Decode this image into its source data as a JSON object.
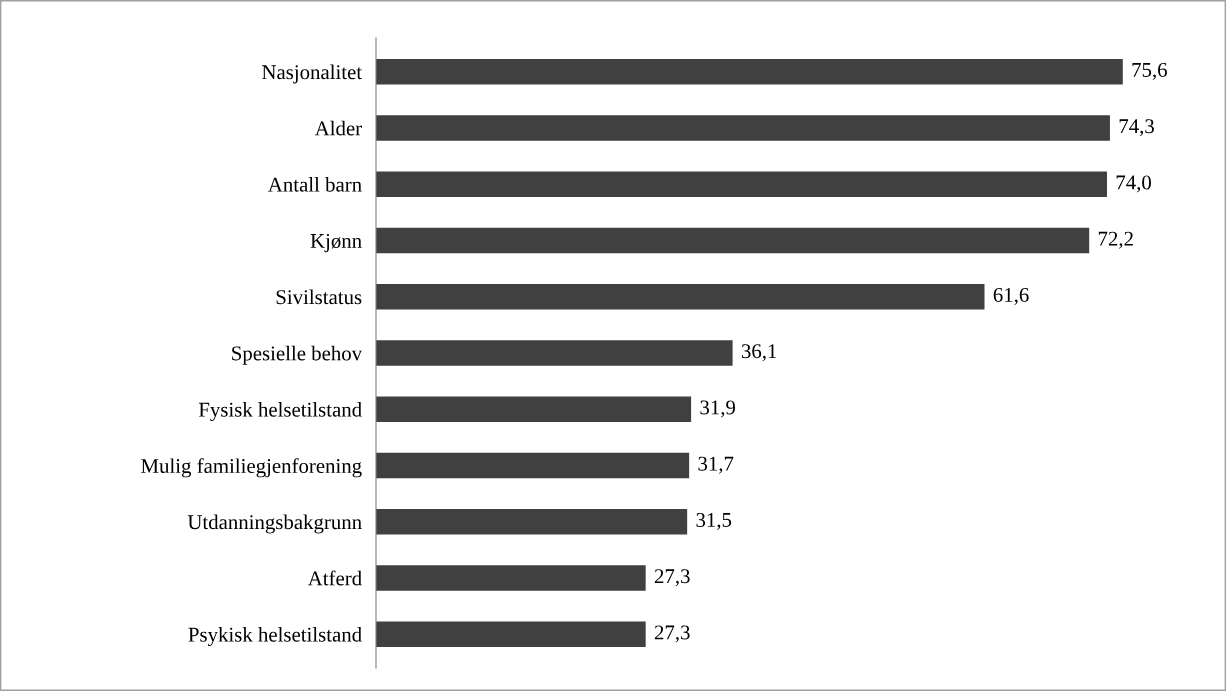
{
  "chart_data": {
    "type": "bar",
    "orientation": "horizontal",
    "grid": false,
    "legend": false,
    "tick_labels": "y",
    "color": "#404040",
    "categories": [
      "Nasjonalitet",
      "Alder",
      "Antall barn",
      "Kjønn",
      "Sivilstatus",
      "Spesielle behov",
      "Fysisk helsetilstand",
      "Mulig familiegjenforening",
      "Utdanningsbakgrunn",
      "Atferd",
      "Psykisk helsetilstand"
    ],
    "values": [
      75.6,
      74.3,
      74.0,
      72.2,
      61.6,
      36.1,
      31.9,
      31.7,
      31.5,
      27.3,
      27.3
    ],
    "value_labels": [
      "75,6",
      "74,3",
      "74,0",
      "72,2",
      "61,6",
      "36,1",
      "31,9",
      "31,7",
      "31,5",
      "27,3",
      "27,3"
    ]
  }
}
